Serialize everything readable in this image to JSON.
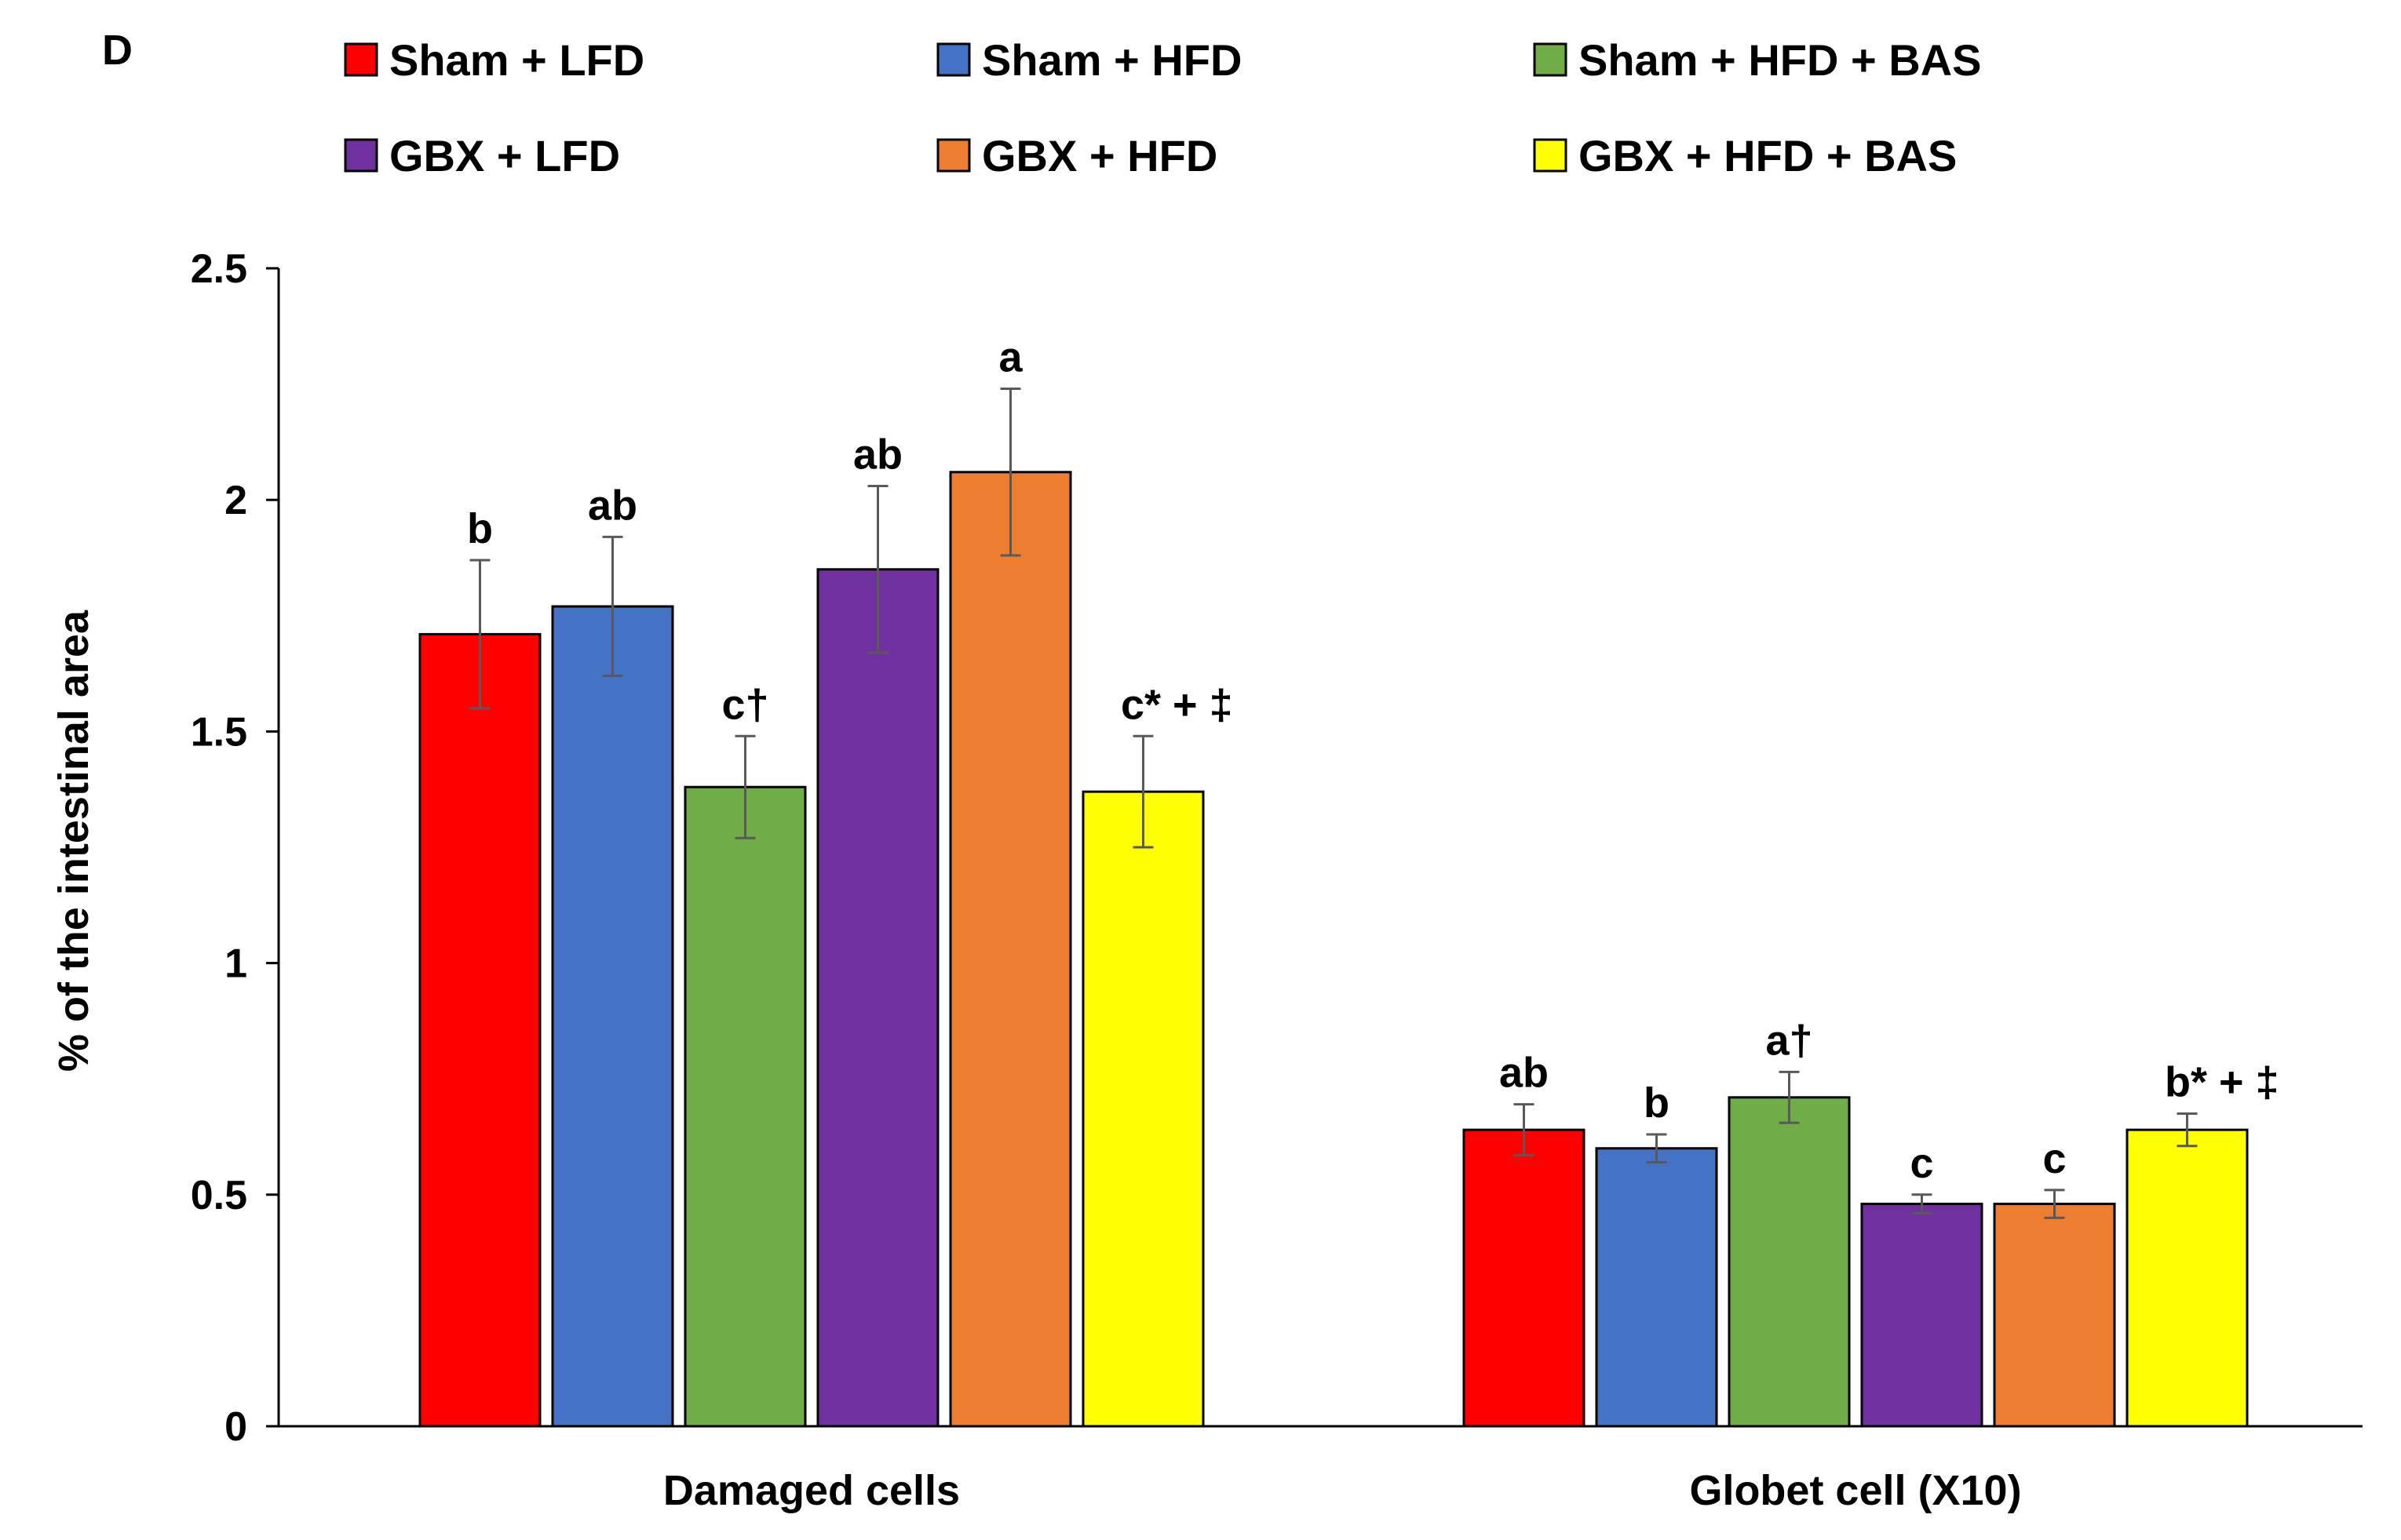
{
  "panel_label": "D",
  "chart_data": {
    "type": "bar",
    "title": "",
    "xlabel": "",
    "ylabel": "% of the intestinal area",
    "ylim": [
      0,
      2.5
    ],
    "yticks": [
      0,
      0.5,
      1,
      1.5,
      2,
      2.5
    ],
    "ytick_labels": [
      "0",
      "0.5",
      "1",
      "1.5",
      "2",
      "2.5"
    ],
    "categories": [
      "Damaged cells",
      "Globet cell (X10)"
    ],
    "legend_position": "top",
    "series": [
      {
        "name": "Sham + LFD",
        "color": "#ff0000",
        "values": [
          1.71,
          0.64
        ],
        "errors": [
          0.16,
          0.055
        ],
        "labels": [
          "b",
          "ab"
        ]
      },
      {
        "name": "Sham + HFD",
        "color": "#4472c4",
        "values": [
          1.77,
          0.6
        ],
        "errors": [
          0.15,
          0.03
        ],
        "labels": [
          "ab",
          "b"
        ]
      },
      {
        "name": "Sham + HFD + BAS",
        "color": "#70ad47",
        "values": [
          1.38,
          0.71
        ],
        "errors": [
          0.11,
          0.055
        ],
        "labels": [
          "c†",
          "a†"
        ]
      },
      {
        "name": "GBX + LFD",
        "color": "#7030a0",
        "values": [
          1.85,
          0.48
        ],
        "errors": [
          0.18,
          0.02
        ],
        "labels": [
          "ab",
          "c"
        ]
      },
      {
        "name": "GBX + HFD",
        "color": "#ed7d31",
        "values": [
          2.06,
          0.48
        ],
        "errors": [
          0.18,
          0.03
        ],
        "labels": [
          "a",
          "c"
        ]
      },
      {
        "name": "GBX + HFD + BAS",
        "color": "#ffff00",
        "values": [
          1.37,
          0.64
        ],
        "errors": [
          0.12,
          0.035
        ],
        "labels": [
          "c* + ‡",
          "b* + ‡"
        ]
      }
    ]
  }
}
